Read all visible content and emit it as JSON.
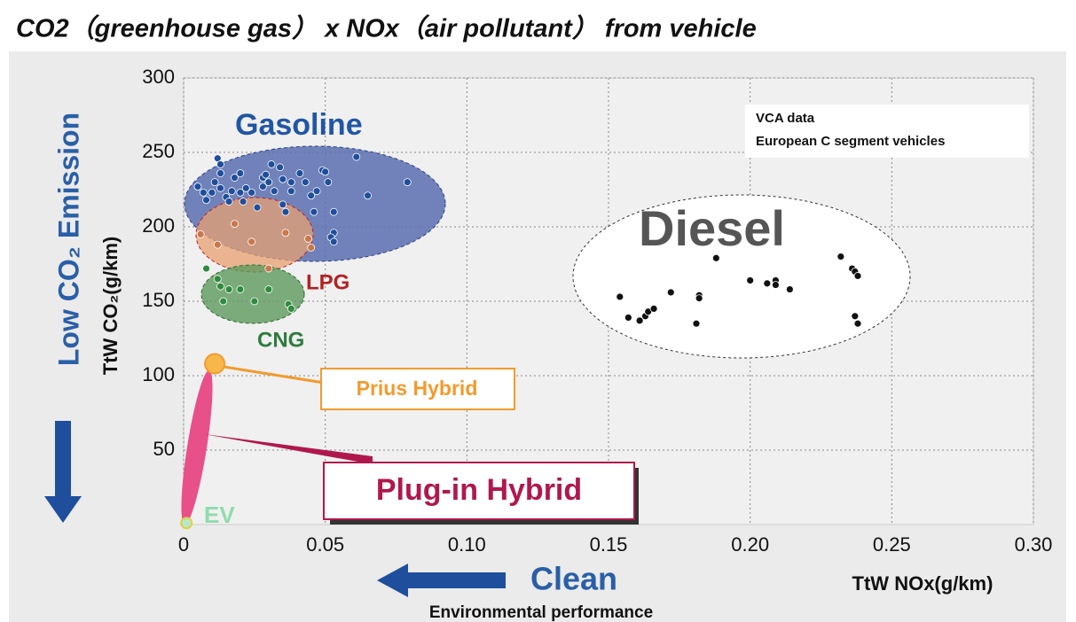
{
  "chart_data": {
    "type": "scatter",
    "title": "CO2（greenhouse gas） x NOx（air pollutant） from vehicle",
    "x_label": "TtW NOx(g/km)",
    "y_label": "TtW CO₂(g/km)",
    "annotations": {
      "note_line1": "VCA data",
      "note_line2": "European C segment vehicles",
      "plugin": "Plug-in Hybrid",
      "low_co2": "Low CO₂ Emission",
      "clean": "Clean",
      "env": "Environmental performance"
    },
    "xlim": [
      0,
      0.3
    ],
    "ylim": [
      0,
      300
    ],
    "xticks": [
      0,
      0.05,
      {
        "value": 0.1,
        "label": "0.10"
      },
      0.15,
      {
        "value": 0.2,
        "label": "0.20"
      },
      0.25,
      {
        "value": 0.3,
        "label": "0.30"
      }
    ],
    "yticks": [
      50,
      100,
      150,
      200,
      250,
      300
    ],
    "grid": true,
    "series": [
      {
        "name": "Gasoline",
        "color": "#1f4e9c",
        "x": [
          0.005,
          0.007,
          0.008,
          0.01,
          0.011,
          0.012,
          0.013,
          0.013,
          0.013,
          0.015,
          0.016,
          0.017,
          0.018,
          0.02,
          0.02,
          0.021,
          0.022,
          0.024,
          0.026,
          0.028,
          0.028,
          0.029,
          0.03,
          0.031,
          0.032,
          0.034,
          0.035,
          0.035,
          0.036,
          0.038,
          0.038,
          0.041,
          0.043,
          0.045,
          0.046,
          0.047,
          0.049,
          0.05,
          0.051,
          0.053,
          0.053,
          0.052,
          0.053,
          0.061,
          0.065,
          0.079
        ],
        "values": [
          227,
          223,
          218,
          223,
          230,
          246,
          242,
          236,
          226,
          220,
          217,
          224,
          233,
          236,
          223,
          217,
          226,
          223,
          213,
          233,
          227,
          235,
          230,
          242,
          224,
          240,
          232,
          215,
          210,
          224,
          230,
          236,
          230,
          221,
          210,
          224,
          238,
          237,
          230,
          210,
          196,
          193,
          190,
          247,
          221,
          230
        ]
      },
      {
        "name": "LPG",
        "color": "#c9784a",
        "x": [
          0.006,
          0.012,
          0.018,
          0.024,
          0.03,
          0.036,
          0.044,
          0.045
        ],
        "values": [
          195,
          188,
          202,
          190,
          172,
          196,
          192,
          186
        ]
      },
      {
        "name": "CNG",
        "color": "#2e8b3e",
        "x": [
          0.008,
          0.012,
          0.013,
          0.014,
          0.016,
          0.02,
          0.025,
          0.03,
          0.037,
          0.038
        ],
        "values": [
          172,
          165,
          160,
          150,
          158,
          158,
          150,
          158,
          148,
          145
        ]
      },
      {
        "name": "Diesel",
        "color": "#111111",
        "x": [
          0.154,
          0.157,
          0.161,
          0.163,
          0.164,
          0.166,
          0.172,
          0.182,
          0.181,
          0.182,
          0.188,
          0.2,
          0.206,
          0.209,
          0.209,
          0.214,
          0.232,
          0.236,
          0.237,
          0.238,
          0.237,
          0.238
        ],
        "values": [
          153,
          139,
          137,
          140,
          143,
          145,
          156,
          154,
          135,
          152,
          179,
          164,
          162,
          164,
          161,
          158,
          180,
          172,
          170,
          167,
          140,
          135
        ]
      },
      {
        "name": "Prius Hybrid",
        "color": "#f7b74a",
        "x": [
          0.011
        ],
        "values": [
          108
        ]
      },
      {
        "name": "EV",
        "color": "#b8e6c8",
        "x": [
          0.001
        ],
        "values": [
          1
        ]
      }
    ]
  }
}
